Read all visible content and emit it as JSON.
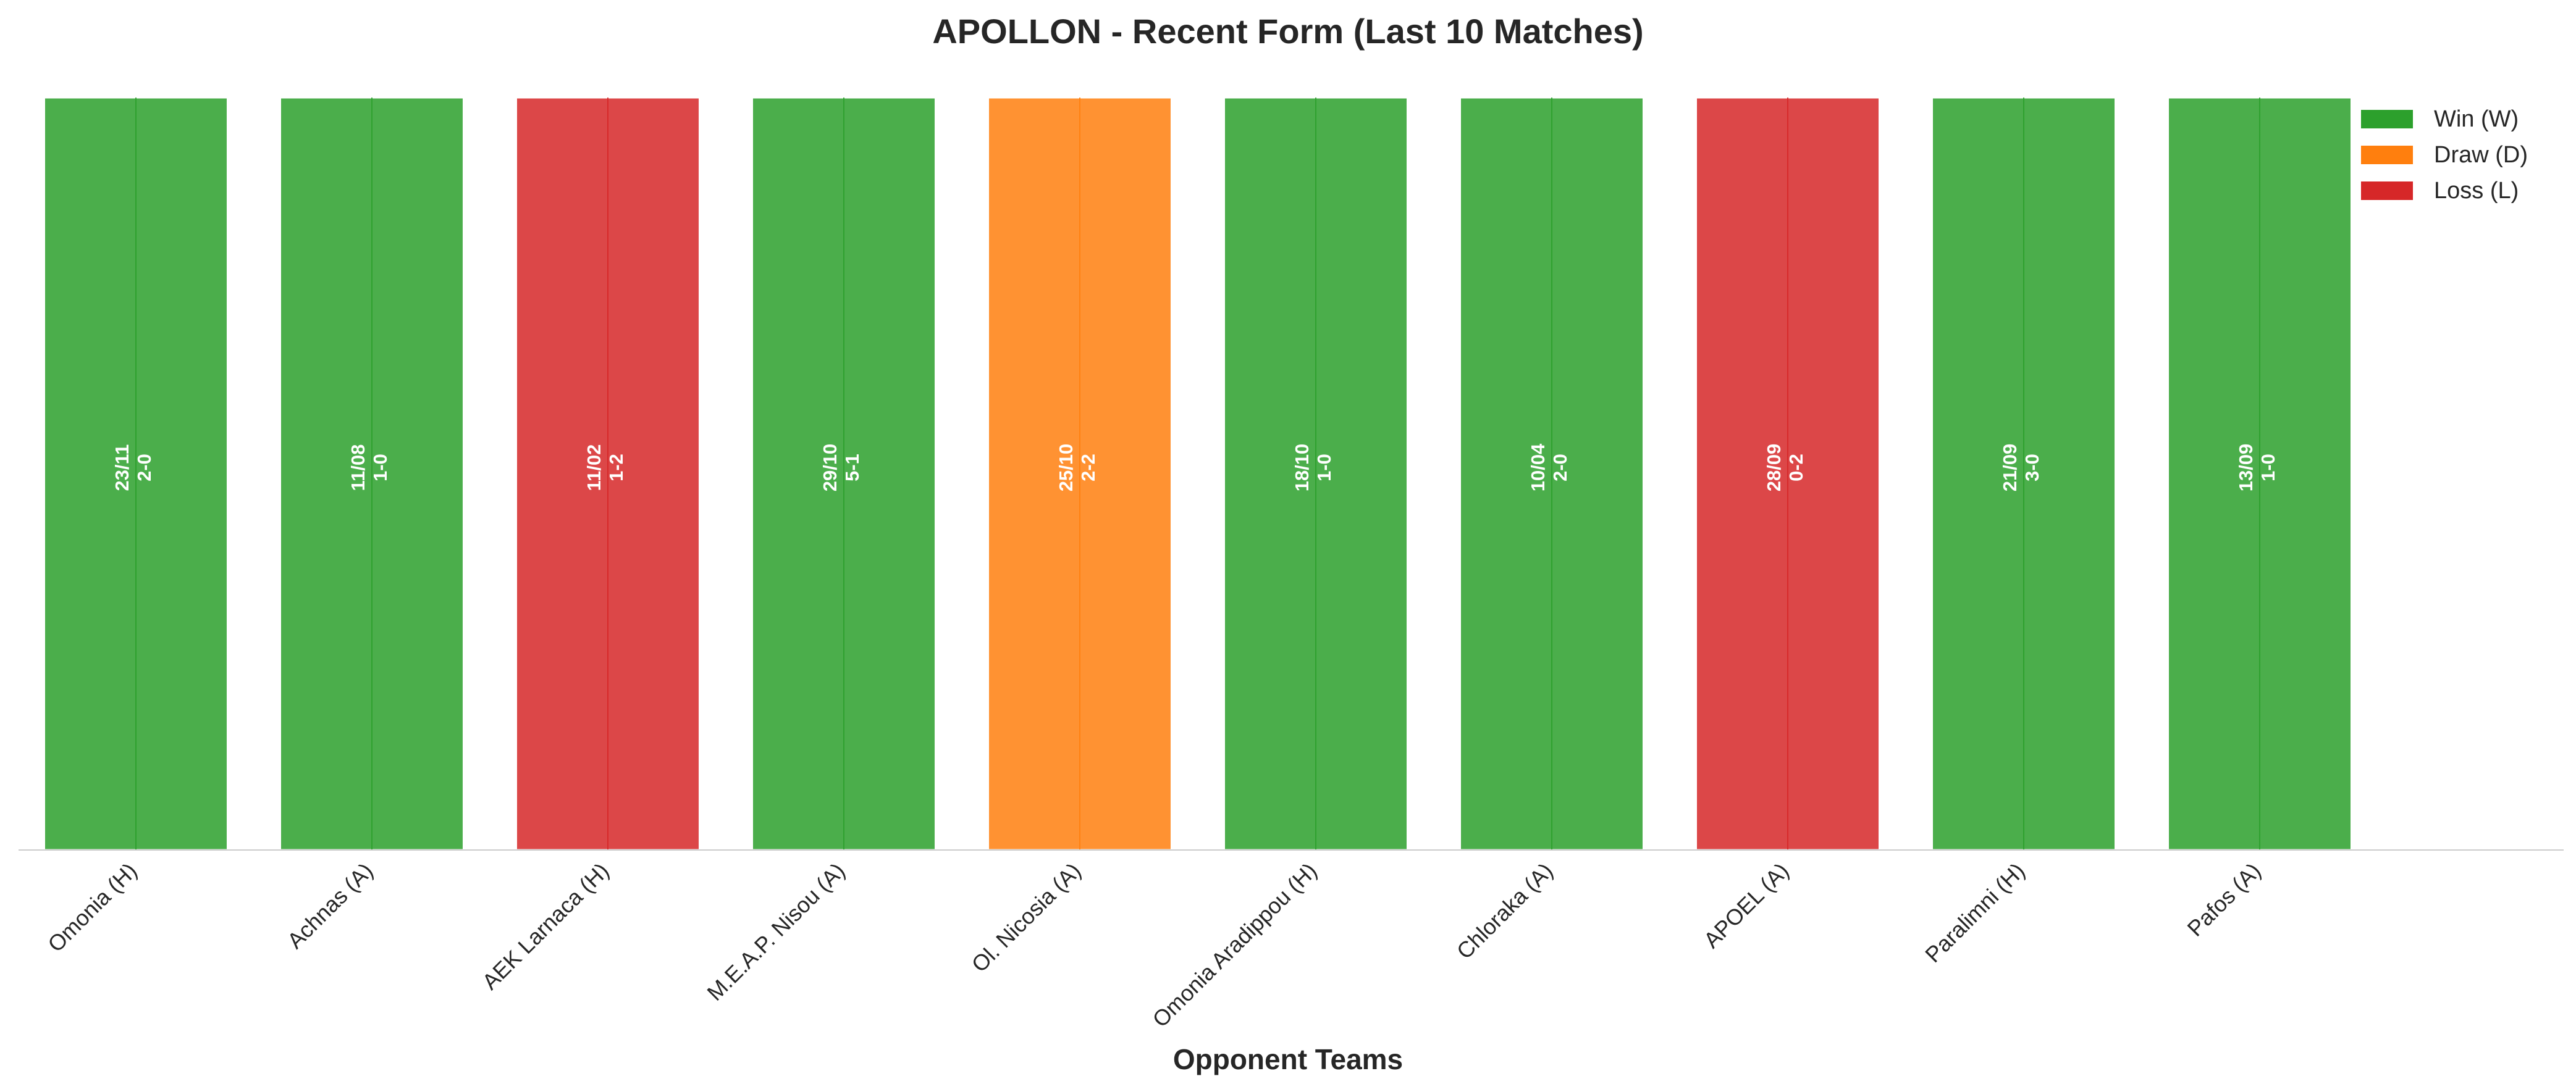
{
  "chart_data": {
    "type": "bar",
    "title": "APOLLON - Recent Form (Last 10 Matches)",
    "xlabel": "Opponent Teams",
    "ylabel": "",
    "ylim": [
      0,
      1
    ],
    "grid": false,
    "legend_position": "top-right",
    "categories": [
      "Omonia (H)",
      "Achnas (A)",
      "AEK Larnaca (H)",
      "M.E.A.P. Nisou (A)",
      "Ol. Nicosia (A)",
      "Omonia Aradippou (H)",
      "Chloraka (A)",
      "APOEL (A)",
      "Paralimni (H)",
      "Pafos (A)"
    ],
    "values": [
      1,
      1,
      1,
      1,
      1,
      1,
      1,
      1,
      1,
      1
    ],
    "results": [
      "W",
      "W",
      "L",
      "W",
      "D",
      "W",
      "W",
      "L",
      "W",
      "W"
    ],
    "dates": [
      "23/11",
      "11/08",
      "11/02",
      "29/10",
      "25/10",
      "18/10",
      "10/04",
      "28/09",
      "21/09",
      "13/09"
    ],
    "scores": [
      "2-0",
      "1-0",
      "1-2",
      "5-1",
      "2-2",
      "1-0",
      "2-0",
      "0-2",
      "3-0",
      "1-0"
    ],
    "legend": [
      {
        "key": "W",
        "label": "Win (W)",
        "color": "#2ca02c"
      },
      {
        "key": "D",
        "label": "Draw (D)",
        "color": "#ff7f0e"
      },
      {
        "key": "L",
        "label": "Loss (L)",
        "color": "#d62728"
      }
    ]
  }
}
